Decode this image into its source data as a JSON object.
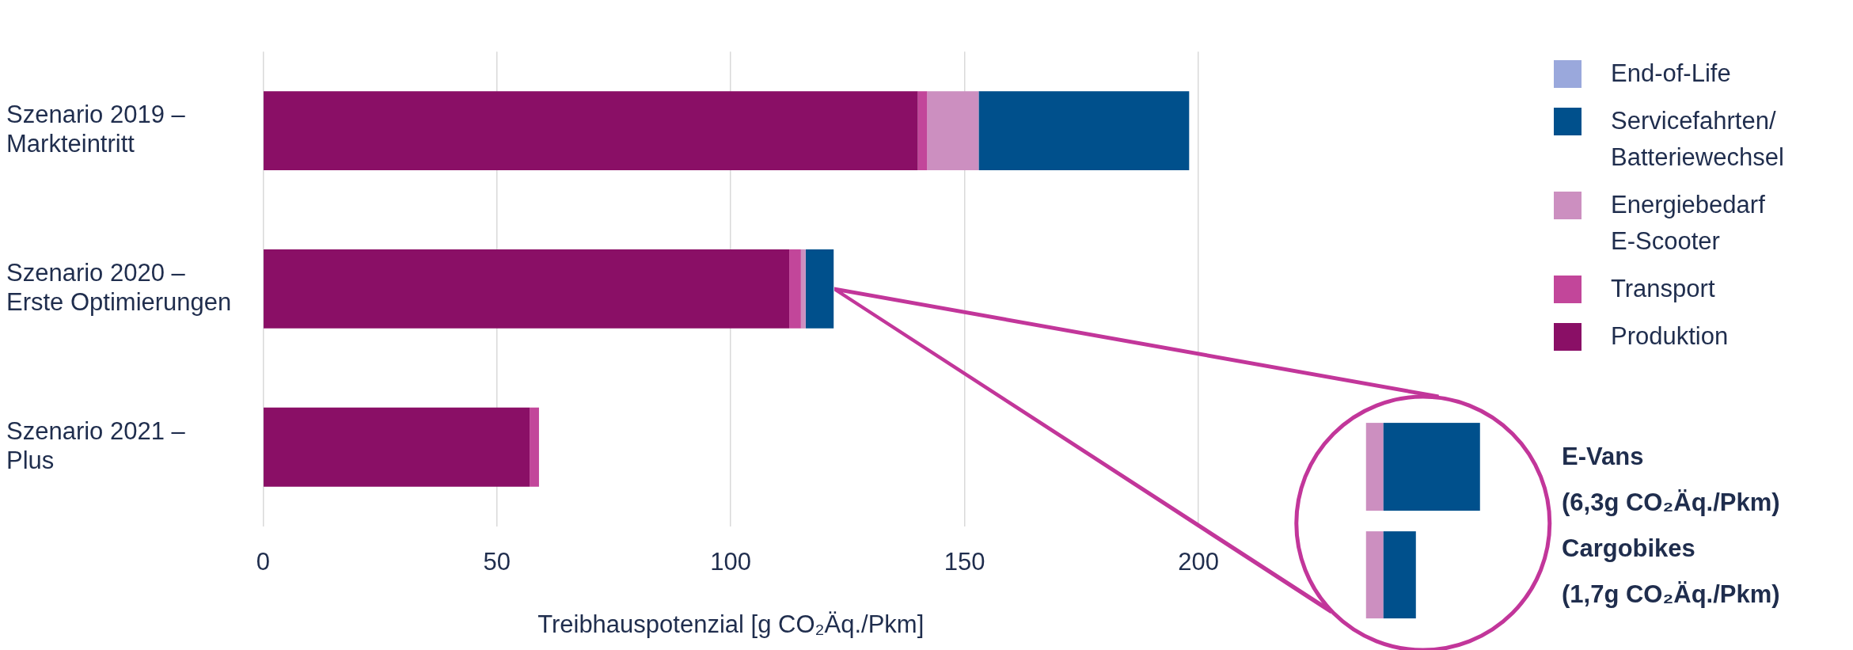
{
  "chart_data": {
    "type": "bar",
    "orientation": "horizontal",
    "stacked": true,
    "categories": [
      "Szenario 2019 – Markteintritt",
      "Szenario 2020 – Erste Optimierungen",
      "Szenario 2021 – Plus"
    ],
    "series": [
      {
        "name": "Produktion",
        "color": "#8a0f66",
        "values": [
          140,
          112.5,
          57
        ]
      },
      {
        "name": "Transport",
        "color": "#c2469a",
        "values": [
          2,
          2.5,
          2
        ]
      },
      {
        "name": "Energiebedarf E-Scooter",
        "color": "#cc8fc0",
        "values": [
          11,
          1,
          0
        ]
      },
      {
        "name": "Servicefahrten/Batteriewechsel",
        "color": "#00508c",
        "values": [
          45,
          6,
          0
        ]
      },
      {
        "name": "End-of-Life",
        "color": "#9aa8dc",
        "values": [
          0,
          0,
          0
        ]
      }
    ],
    "xlabel": "Treibhauspotenzial [g CO₂Äq./Pkm]",
    "xlim": [
      0,
      200
    ],
    "xticks": [
      0,
      50,
      100,
      150,
      200
    ],
    "grid": "x",
    "legend": "right",
    "annotations": [
      "E-Vans",
      "(6,3g CO₂Äq./Pkm)",
      "Cargobikes",
      "(1,7g CO₂Äq./Pkm)"
    ]
  }
}
